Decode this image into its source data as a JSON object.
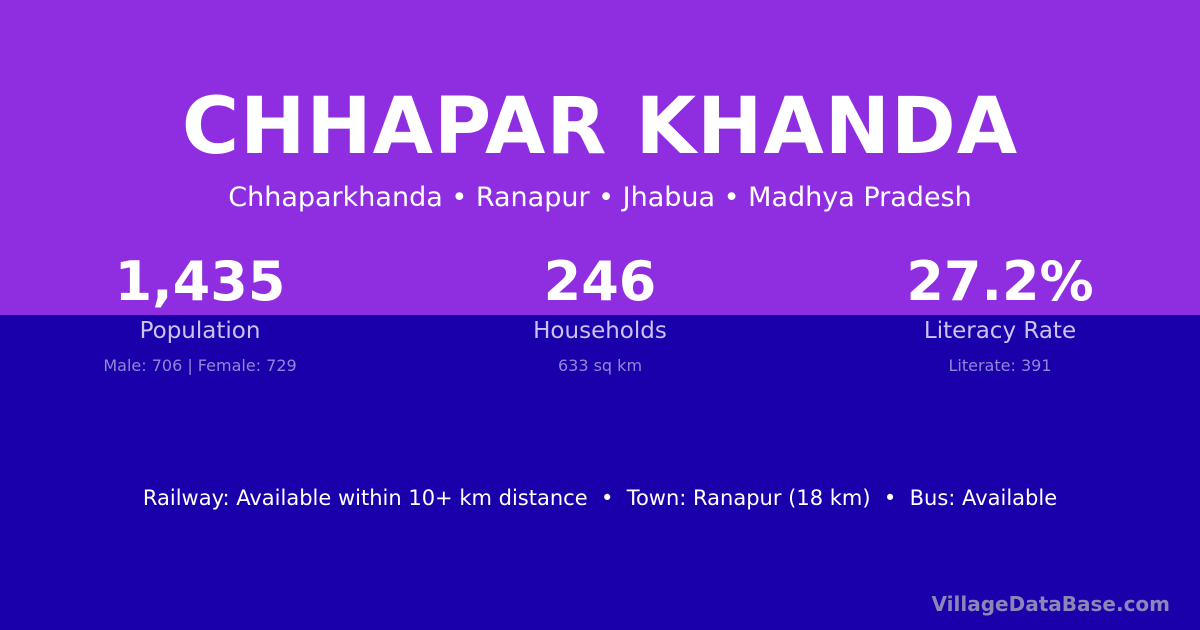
{
  "header": {
    "title": "CHHAPAR KHANDA",
    "subtitle": "Chhaparkhanda • Ranapur • Jhabua • Madhya Pradesh"
  },
  "stats": [
    {
      "value": "1,435",
      "label": "Population",
      "detail": "Male: 706 | Female: 729"
    },
    {
      "value": "246",
      "label": "Households",
      "detail": "633 sq km"
    },
    {
      "value": "27.2%",
      "label": "Literacy Rate",
      "detail": "Literate: 391"
    }
  ],
  "facts": "Railway: Available within 10+ km distance  •  Town: Ranapur (18 km)  •  Bus: Available",
  "brand": "VillageDataBase.com",
  "colors": {
    "top_background": "#8f2ee0",
    "bottom_background": "#1a00aa"
  }
}
